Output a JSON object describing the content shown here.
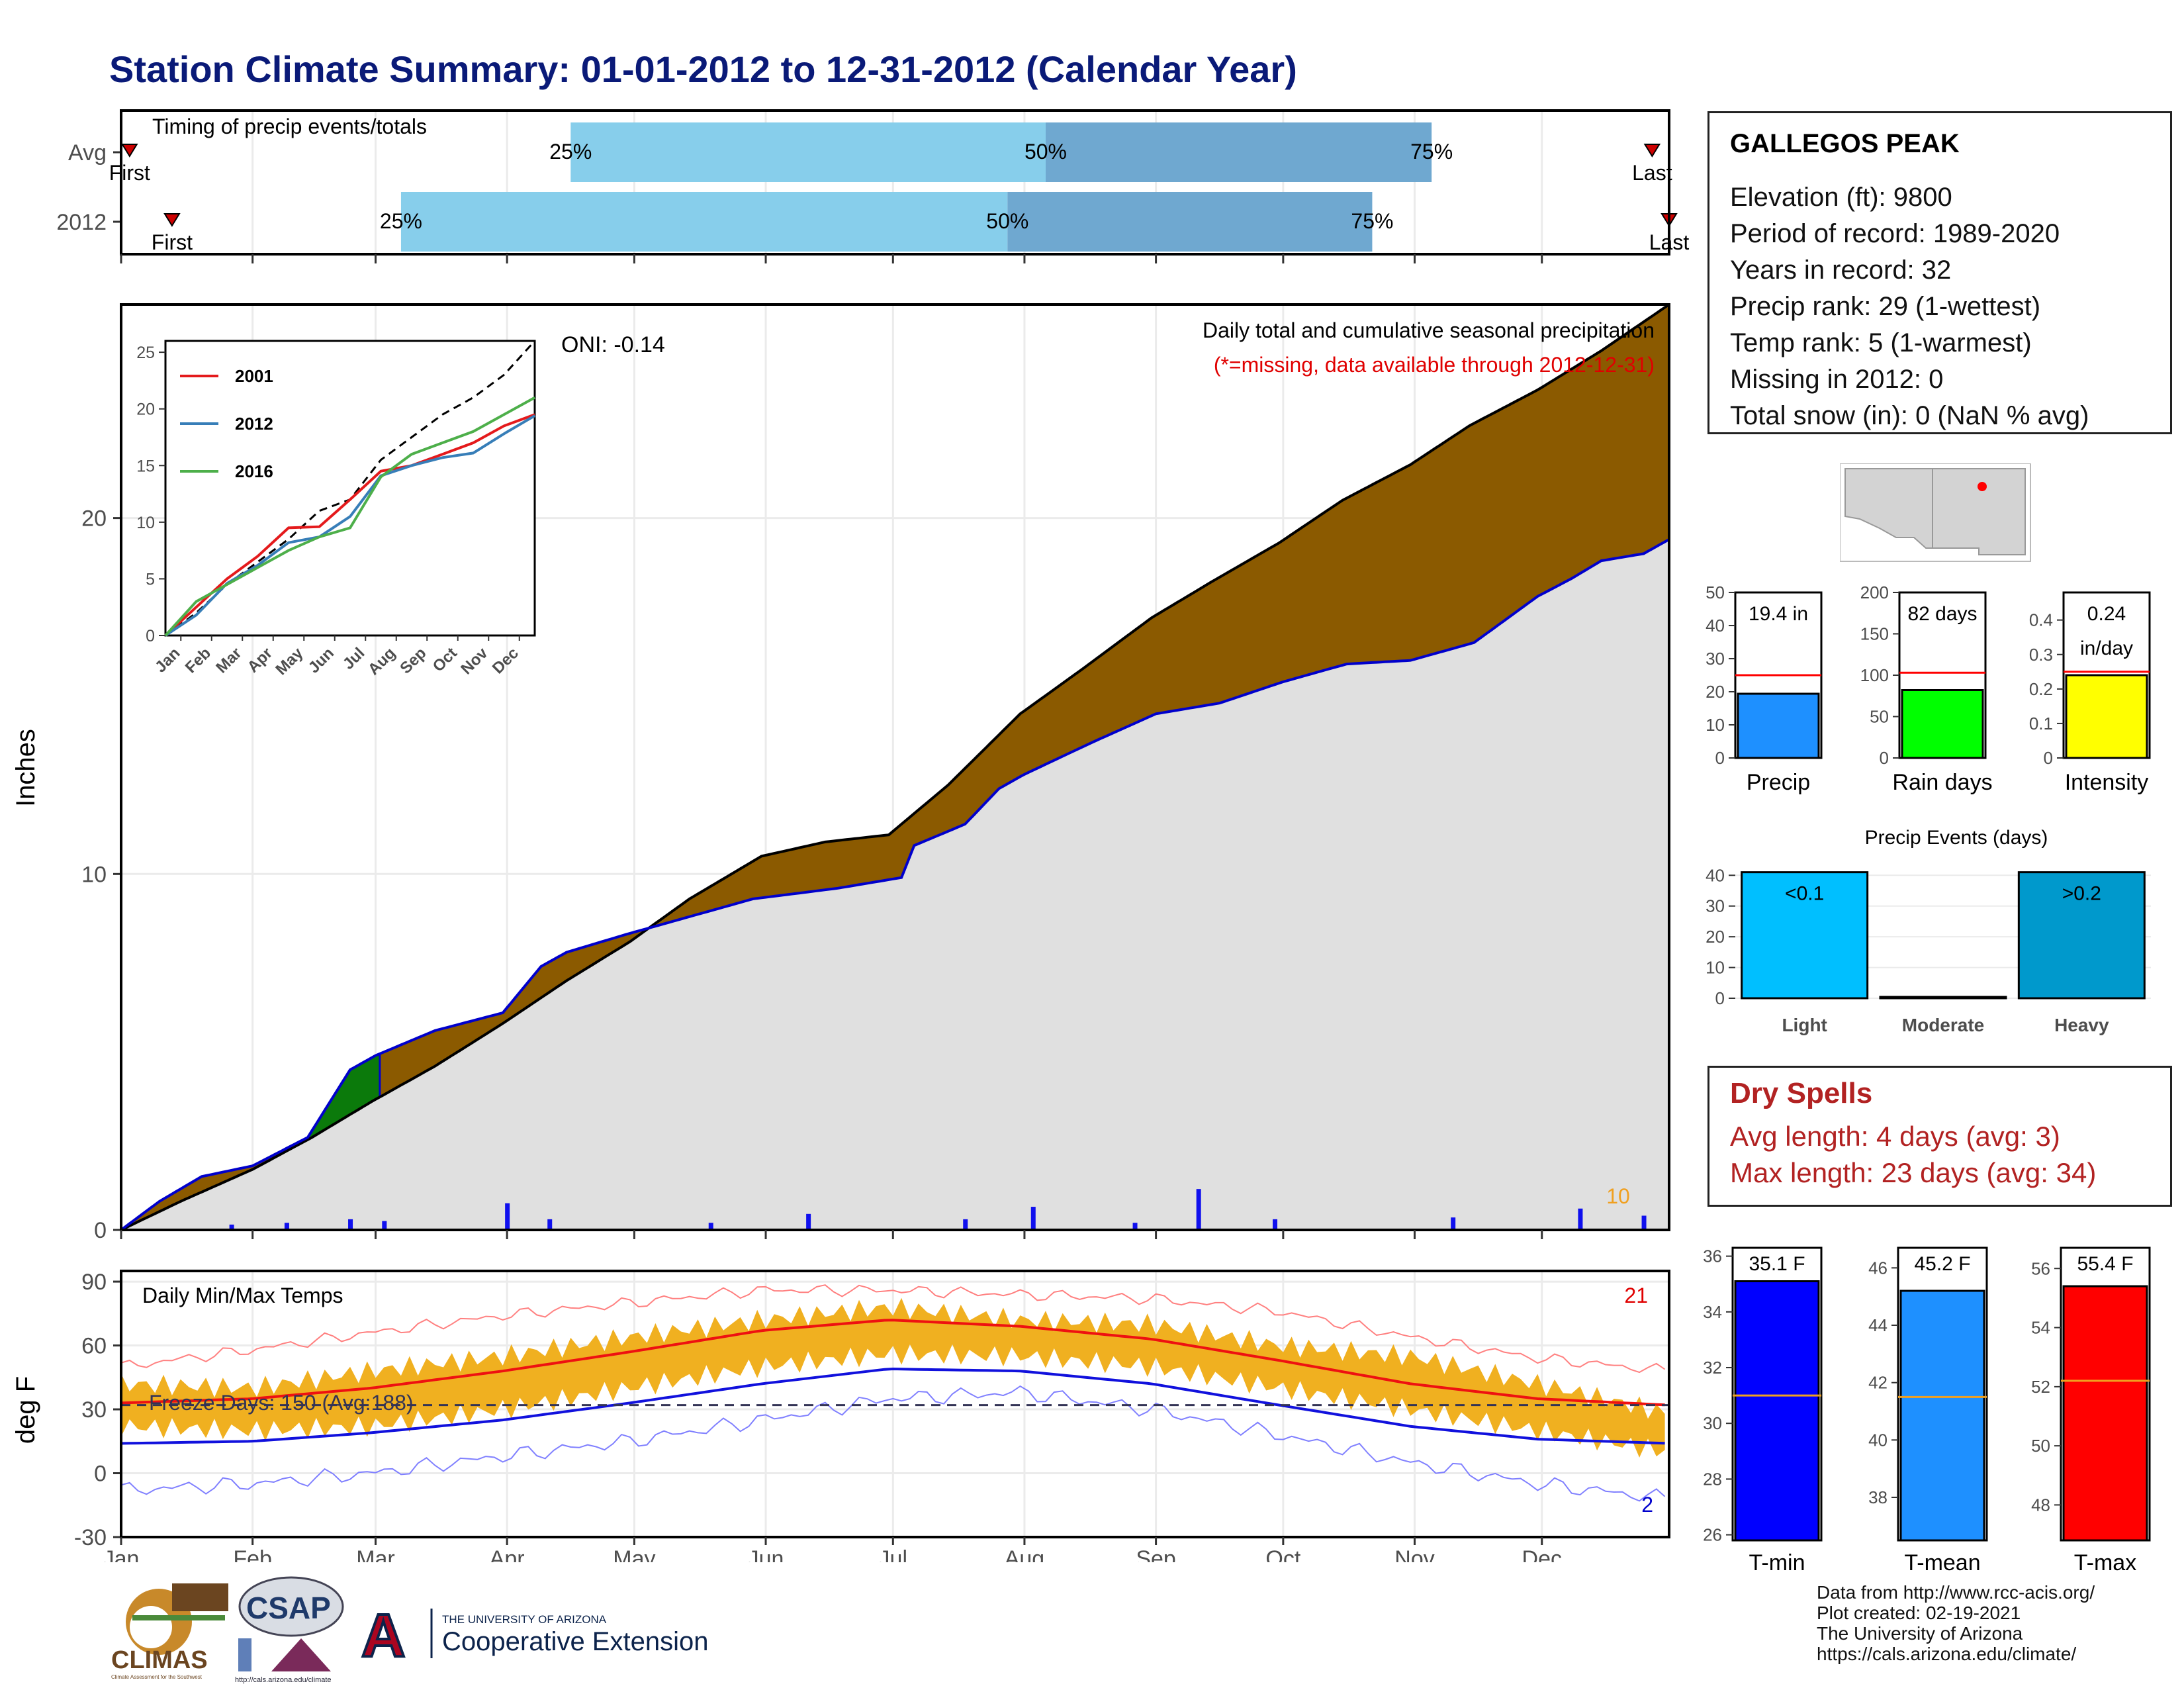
{
  "title": "Station Climate Summary: 01-01-2012 to 12-31-2012 (Calendar Year)",
  "colors": {
    "navy": "#0a1a78",
    "precip_fill": "#8b5a00",
    "precip_deficit": "#0b7a0b",
    "climo_fill": "#e0e0e0",
    "daily_bar": "#1010ee",
    "temp_band": "#f0b020",
    "tmax_line": "#ee1111",
    "tmin_line": "#1111dd",
    "light_blue": "#87ceeb",
    "mid_blue": "#6fa8d0",
    "dry_red": "#b22222"
  },
  "station": {
    "name": "GALLEGOS PEAK",
    "lines": [
      "Elevation (ft): 9800",
      "Period of record: 1989-2020",
      "Years in record: 32",
      "Precip rank: 29 (1-wettest)",
      "Temp rank: 5 (1-warmest)",
      "Missing in 2012: 0",
      "Total snow (in): 0 (NaN % avg)"
    ]
  },
  "dry_spells": {
    "title": "Dry Spells",
    "lines": [
      "Avg length: 4 days (avg: 3)",
      "Max length: 23 days (avg: 34)"
    ]
  },
  "credits": {
    "lines": [
      "Data from http://www.rcc-acis.org/",
      "Plot created: 02-19-2021",
      "The University of Arizona",
      "https://cals.arizona.edu/climate/"
    ]
  },
  "logos": {
    "climas": "CLIMAS",
    "climas_sub": "Climate Assessment for the Southwest",
    "csap": "CSAP",
    "csap_url": "http://cals.arizona.edu/climate",
    "ua_line1": "THE UNIVERSITY OF ARIZONA",
    "ua_line2": "Cooperative Extension",
    "ua_letter": "A"
  },
  "chart_data": [
    {
      "type": "bar",
      "name": "timing",
      "title": "Timing of precip events/totals",
      "categories": [
        "Avg",
        "2012"
      ],
      "x_range": [
        "Jan 1",
        "Dec 31"
      ],
      "rows": [
        {
          "label": "Avg",
          "first_doy": 3,
          "p25_doy": 107,
          "p50_doy": 219,
          "p75_doy": 310,
          "last_doy": 362,
          "p25_label": "25%",
          "p50_label": "50%",
          "p75_label": "75%",
          "first_label": "First",
          "last_label": "Last"
        },
        {
          "label": "2012",
          "first_doy": 13,
          "p25_doy": 67,
          "p50_doy": 210,
          "p75_doy": 296,
          "last_doy": 366,
          "p25_label": "25%",
          "p50_label": "50%",
          "p75_label": "75%",
          "first_label": "First",
          "last_label": "Last"
        }
      ]
    },
    {
      "type": "area",
      "name": "cumulative-precip",
      "title": "Daily total and cumulative seasonal precipitation",
      "subtitle": "(*=missing, data available through 2012-12-31)",
      "oni_label": "ONI: -0.14",
      "ylabel": "Inches",
      "ylim": [
        0,
        26
      ],
      "yticks": [
        0,
        10,
        20
      ],
      "max_daily_label": "10",
      "climo_cumulative": {
        "doy": [
          1,
          15,
          32,
          46,
          60,
          75,
          91,
          106,
          121,
          135,
          152,
          167,
          182,
          196,
          213,
          227,
          244,
          258,
          274,
          289,
          305,
          319,
          335,
          350,
          366
        ],
        "in": [
          0.0,
          0.8,
          1.7,
          2.6,
          3.6,
          4.6,
          5.8,
          7.0,
          8.1,
          9.3,
          10.5,
          10.9,
          11.1,
          12.5,
          14.5,
          15.7,
          17.2,
          18.2,
          19.3,
          20.5,
          21.5,
          22.6,
          23.6,
          24.7,
          26.0
        ]
      },
      "year_cumulative": {
        "doy": [
          1,
          10,
          20,
          32,
          45,
          55,
          61,
          75,
          91,
          100,
          106,
          120,
          135,
          150,
          170,
          185,
          188,
          200,
          208,
          214,
          230,
          245,
          260,
          275,
          290,
          305,
          320,
          335,
          343,
          350,
          360,
          366
        ],
        "in": [
          0.0,
          0.8,
          1.5,
          1.8,
          2.6,
          4.5,
          4.9,
          5.6,
          6.1,
          7.4,
          7.8,
          8.3,
          8.8,
          9.3,
          9.6,
          9.9,
          10.8,
          11.4,
          12.4,
          12.8,
          13.7,
          14.5,
          14.8,
          15.4,
          15.9,
          16.0,
          16.5,
          17.8,
          18.3,
          18.8,
          19.0,
          19.4
        ]
      },
      "daily_spikes": [
        {
          "doy": 27,
          "in": 0.15
        },
        {
          "doy": 40,
          "in": 0.2
        },
        {
          "doy": 55,
          "in": 0.3
        },
        {
          "doy": 63,
          "in": 0.25
        },
        {
          "doy": 92,
          "in": 0.75
        },
        {
          "doy": 102,
          "in": 0.3
        },
        {
          "doy": 140,
          "in": 0.2
        },
        {
          "doy": 163,
          "in": 0.45
        },
        {
          "doy": 200,
          "in": 0.3
        },
        {
          "doy": 216,
          "in": 0.65
        },
        {
          "doy": 240,
          "in": 0.2
        },
        {
          "doy": 255,
          "in": 1.15
        },
        {
          "doy": 273,
          "in": 0.3
        },
        {
          "doy": 315,
          "in": 0.35
        },
        {
          "doy": 345,
          "in": 0.6
        },
        {
          "doy": 360,
          "in": 0.4
        }
      ]
    },
    {
      "type": "line",
      "name": "inset-cumulative",
      "series": [
        {
          "name": "2001",
          "color": "#e41a1c",
          "in": [
            0,
            2.5,
            5.0,
            7.0,
            9.5,
            9.6,
            12.0,
            14.5,
            15.0,
            16.0,
            17.0,
            18.5,
            19.5
          ]
        },
        {
          "name": "2012",
          "color": "#377eb8",
          "in": [
            0,
            1.8,
            4.6,
            6.2,
            8.2,
            8.7,
            10.5,
            14.1,
            15.0,
            15.7,
            16.1,
            17.8,
            19.4
          ]
        },
        {
          "name": "2016",
          "color": "#4daf4a",
          "in": [
            0,
            3.0,
            4.5,
            6.0,
            7.5,
            8.7,
            9.5,
            14.0,
            16.0,
            17.0,
            18.0,
            19.5,
            21.0
          ]
        }
      ],
      "avg_line": {
        "in": [
          0,
          2.0,
          4.5,
          6.5,
          8.5,
          11.0,
          12.0,
          15.5,
          17.5,
          19.5,
          21.0,
          23.0,
          26.0
        ]
      },
      "x_ticks": [
        "Jan",
        "Feb",
        "Mar",
        "Apr",
        "May",
        "Jun",
        "Jul",
        "Aug",
        "Sep",
        "Oct",
        "Nov",
        "Dec"
      ],
      "yticks": [
        0,
        5,
        10,
        15,
        20,
        25
      ],
      "ylim": [
        0,
        26
      ]
    },
    {
      "type": "line",
      "name": "daily-temps",
      "title": "Daily Min/Max Temps",
      "ylabel": "deg F",
      "ylim": [
        -30,
        95
      ],
      "yticks": [
        -30,
        0,
        30,
        60,
        90
      ],
      "freeze_label": "Freeze Days: 150 (Avg:188)",
      "freeze_line": 32,
      "record_high_count": "21",
      "record_low_count": "2",
      "x_ticks": [
        "Jan",
        "Feb",
        "Mar",
        "Apr",
        "May",
        "Jun",
        "Jul",
        "Aug",
        "Sep",
        "Oct",
        "Nov",
        "Dec"
      ],
      "normal_max": {
        "doy": [
          1,
          32,
          60,
          91,
          121,
          152,
          182,
          213,
          244,
          274,
          305,
          335,
          366
        ],
        "f": [
          33,
          35,
          40,
          48,
          57,
          67,
          72,
          69,
          63,
          53,
          42,
          35,
          32
        ]
      },
      "normal_min": {
        "doy": [
          1,
          32,
          60,
          91,
          121,
          152,
          182,
          213,
          244,
          274,
          305,
          335,
          366
        ],
        "f": [
          14,
          15,
          19,
          25,
          33,
          42,
          49,
          48,
          42,
          32,
          22,
          16,
          14
        ]
      },
      "record_max": {
        "doy": [
          1,
          32,
          60,
          91,
          121,
          152,
          182,
          213,
          244,
          274,
          305,
          335,
          366
        ],
        "f": [
          50,
          58,
          66,
          74,
          80,
          86,
          86,
          84,
          82,
          76,
          64,
          54,
          48
        ]
      },
      "record_min": {
        "doy": [
          1,
          32,
          60,
          91,
          121,
          152,
          182,
          213,
          244,
          274,
          305,
          335,
          366
        ],
        "f": [
          -8,
          -5,
          0,
          8,
          15,
          25,
          35,
          38,
          30,
          18,
          5,
          -5,
          -12
        ]
      },
      "observed_max": {
        "doy": [
          1,
          32,
          60,
          91,
          121,
          152,
          182,
          213,
          244,
          274,
          305,
          335,
          366
        ],
        "f": [
          42,
          40,
          48,
          55,
          64,
          72,
          78,
          72,
          70,
          60,
          55,
          42,
          28
        ]
      },
      "observed_min": {
        "doy": [
          1,
          32,
          60,
          91,
          121,
          152,
          182,
          213,
          244,
          274,
          305,
          335,
          366
        ],
        "f": [
          22,
          20,
          22,
          30,
          40,
          50,
          56,
          55,
          50,
          40,
          30,
          20,
          10
        ]
      }
    },
    {
      "type": "bar",
      "name": "precip-summary",
      "bars": [
        {
          "label": "Precip",
          "value": 19.4,
          "value_label": "19.4 in",
          "avg": 25,
          "ylim": [
            0,
            50
          ],
          "yticks": [
            0,
            10,
            20,
            30,
            40,
            50
          ],
          "color": "#1e90ff"
        },
        {
          "label": "Rain days",
          "value": 82,
          "value_label": "82 days",
          "avg": 103,
          "ylim": [
            0,
            200
          ],
          "yticks": [
            0,
            50,
            100,
            150,
            200
          ],
          "color": "#00ff00"
        },
        {
          "label": "Intensity",
          "value": 0.24,
          "value_label": "0.24",
          "value_label2": "in/day",
          "avg": 0.25,
          "ylim": [
            0,
            0.48
          ],
          "yticks": [
            0.0,
            0.1,
            0.2,
            0.3,
            0.4
          ],
          "color": "#ffff00"
        }
      ]
    },
    {
      "type": "bar",
      "name": "precip-events",
      "title": "Precip Events (days)",
      "categories": [
        "Light",
        "Moderate",
        "Heavy"
      ],
      "values": [
        41,
        0,
        41
      ],
      "value_labels": [
        "<0.1",
        "",
        ">0.2"
      ],
      "colors": [
        "#00bfff",
        "#0a0a0a",
        "#0099cc"
      ],
      "ylim": [
        0,
        42
      ],
      "yticks": [
        0,
        10,
        20,
        30,
        40
      ]
    },
    {
      "type": "bar",
      "name": "temp-summary",
      "bars": [
        {
          "label": "T-min",
          "value": 35.1,
          "value_label": "35.1 F",
          "avg": 31,
          "ylim": [
            25.8,
            36.3
          ],
          "yticks": [
            26,
            28,
            30,
            32,
            34,
            36
          ],
          "color": "#0000ff"
        },
        {
          "label": "T-mean",
          "value": 45.2,
          "value_label": "45.2 F",
          "avg": 41.5,
          "ylim": [
            36.5,
            46.7
          ],
          "yticks": [
            38,
            40,
            42,
            44,
            46
          ],
          "color": "#1e90ff"
        },
        {
          "label": "T-max",
          "value": 55.4,
          "value_label": "55.4 F",
          "avg": 52.2,
          "ylim": [
            46.8,
            56.7
          ],
          "yticks": [
            48,
            50,
            52,
            54,
            56
          ],
          "color": "#ff0000"
        }
      ]
    }
  ]
}
